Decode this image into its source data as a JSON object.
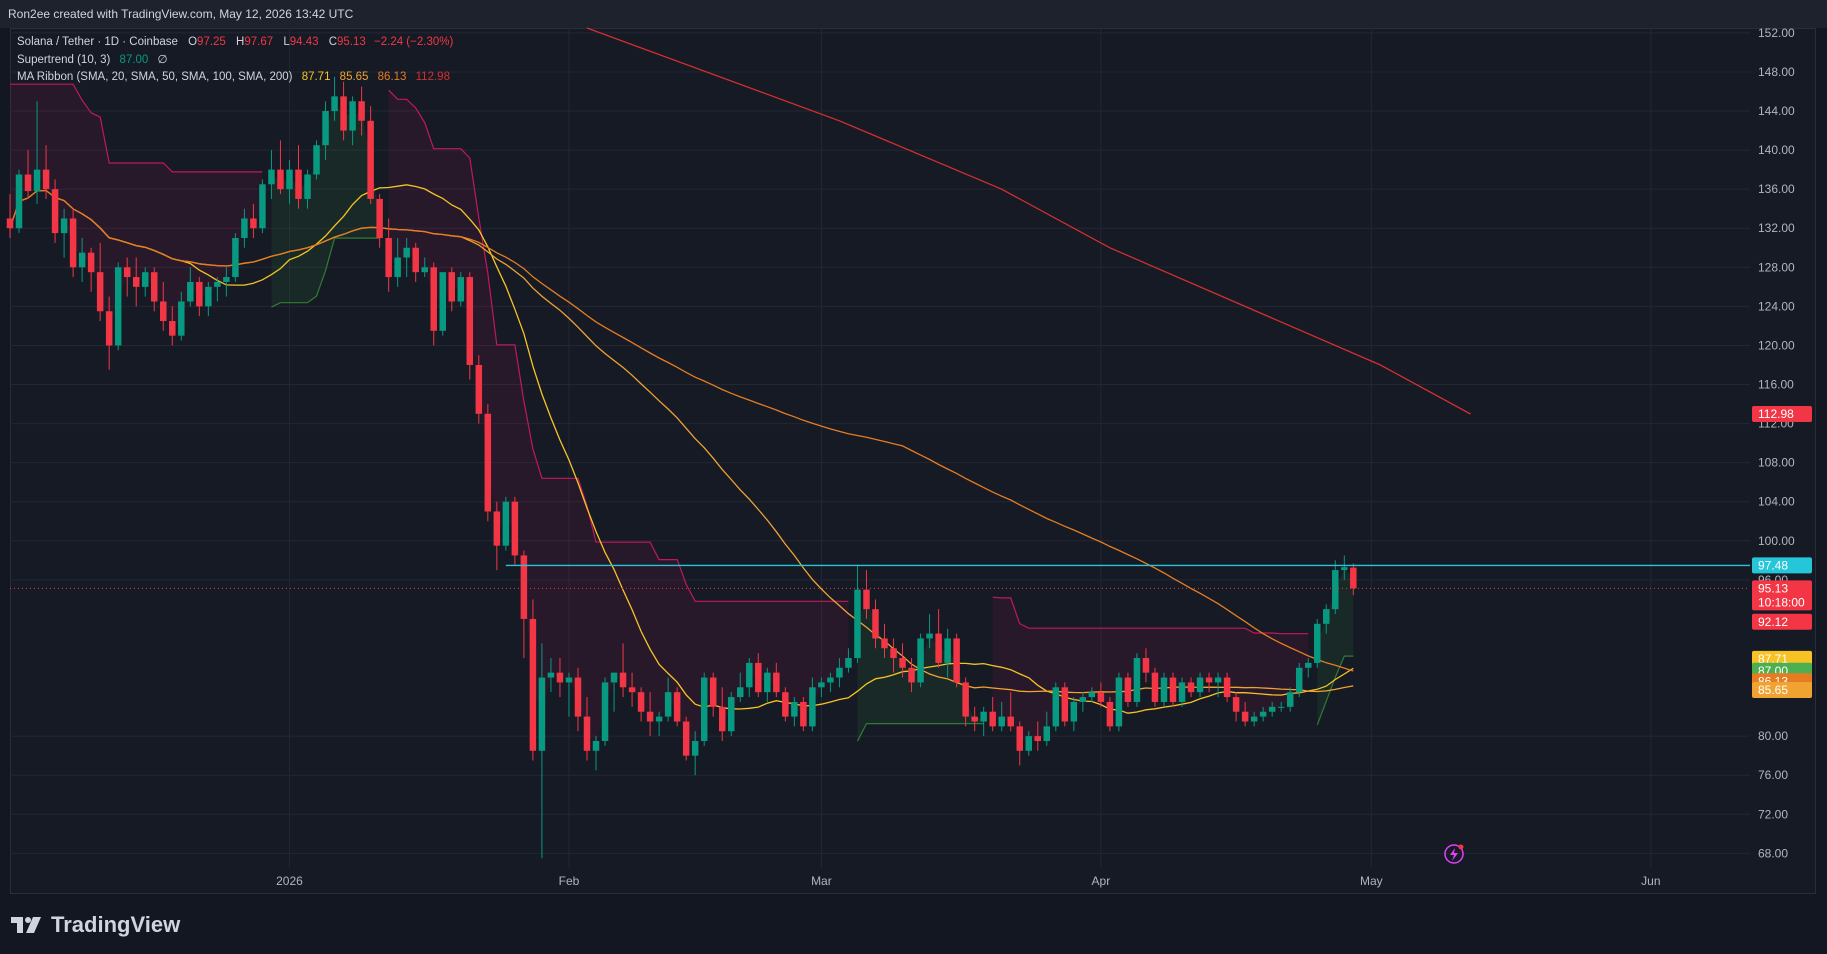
{
  "header": {
    "credit": "Ron2ee created with TradingView.com, May 12, 2026 13:42 UTC"
  },
  "legend": {
    "symbol": "Solana / Tether · 1D · Coinbase",
    "open_label": "O",
    "open": "97.25",
    "high_label": "H",
    "high": "97.67",
    "low_label": "L",
    "low": "94.43",
    "close_label": "C",
    "close": "95.13",
    "change": "−2.24 (−2.30%)",
    "supertrend_label": "Supertrend (10, 3)",
    "supertrend_value": "87.00",
    "supertrend_extra": "∅",
    "ma_label": "MA Ribbon (SMA, 20, SMA, 50, SMA, 100, SMA, 200)",
    "ma_values": [
      "87.71",
      "85.65",
      "86.13",
      "112.98"
    ]
  },
  "footer": {
    "brand": "TradingView"
  },
  "colors": {
    "background": "#131722",
    "up": "#089981",
    "down": "#f23645",
    "sma20": "#f7c324",
    "sma50": "#f0a330",
    "sma100": "#e57c22",
    "sma200": "#d32f2f",
    "supertrend_up": "#2e7d32",
    "supertrend_down": "#c2185b",
    "resistance": "#26c6da"
  },
  "chart_data": {
    "type": "candlestick",
    "title": "Solana / Tether · 1D · Coinbase",
    "y_axis": {
      "ticks": [
        "152.00",
        "148.00",
        "144.00",
        "140.00",
        "136.00",
        "132.00",
        "128.00",
        "124.00",
        "120.00",
        "116.00",
        "112.00",
        "108.00",
        "104.00",
        "100.00",
        "96.00",
        "80.00",
        "76.00",
        "72.00",
        "68.00"
      ],
      "range": [
        66.5,
        152.5
      ]
    },
    "x_axis": {
      "ticks": [
        {
          "label": "2026",
          "date": "2026-01-01"
        },
        {
          "label": "Feb",
          "date": "2026-02-01"
        },
        {
          "label": "Mar",
          "date": "2026-03-01"
        },
        {
          "label": "Apr",
          "date": "2026-04-01"
        },
        {
          "label": "May",
          "date": "2026-05-01"
        },
        {
          "label": "Jun",
          "date": "2026-06-01"
        }
      ],
      "range": [
        "2025-12-01",
        "2026-06-12"
      ]
    },
    "first_date": "2025-12-01",
    "last_date": "2026-05-12",
    "candles": [
      [
        133.0,
        135.5,
        131.0,
        132.0
      ],
      [
        132.0,
        138.0,
        131.5,
        137.5
      ],
      [
        137.5,
        140.0,
        135.0,
        135.8
      ],
      [
        135.8,
        145.0,
        134.5,
        138.0
      ],
      [
        138.0,
        140.5,
        135.0,
        136.0
      ],
      [
        136.0,
        137.0,
        130.5,
        131.5
      ],
      [
        131.5,
        134.0,
        129.0,
        133.0
      ],
      [
        133.0,
        134.0,
        127.0,
        128.0
      ],
      [
        128.0,
        131.0,
        126.5,
        129.5
      ],
      [
        129.5,
        130.0,
        125.5,
        127.5
      ],
      [
        127.5,
        130.5,
        122.5,
        123.5
      ],
      [
        123.5,
        125.0,
        117.5,
        120.0
      ],
      [
        120.0,
        128.5,
        119.5,
        128.0
      ],
      [
        128.0,
        129.0,
        125.0,
        127.0
      ],
      [
        127.0,
        129.0,
        124.0,
        126.0
      ],
      [
        126.0,
        128.0,
        125.0,
        127.5
      ],
      [
        127.5,
        128.0,
        123.5,
        124.5
      ],
      [
        124.5,
        126.5,
        121.5,
        122.5
      ],
      [
        122.5,
        124.0,
        120.0,
        121.0
      ],
      [
        121.0,
        125.5,
        120.5,
        124.5
      ],
      [
        124.5,
        128.0,
        124.0,
        126.5
      ],
      [
        126.5,
        127.0,
        123.0,
        124.0
      ],
      [
        124.0,
        126.5,
        123.0,
        126.0
      ],
      [
        126.0,
        127.0,
        124.5,
        126.5
      ],
      [
        126.5,
        128.0,
        125.0,
        127.0
      ],
      [
        127.0,
        131.5,
        126.5,
        131.0
      ],
      [
        131.0,
        134.0,
        130.0,
        133.0
      ],
      [
        133.0,
        134.5,
        131.0,
        132.0
      ],
      [
        132.0,
        137.0,
        131.5,
        136.5
      ],
      [
        136.5,
        140.0,
        135.0,
        138.0
      ],
      [
        138.0,
        141.0,
        135.5,
        136.0
      ],
      [
        136.0,
        139.0,
        134.5,
        138.0
      ],
      [
        138.0,
        140.5,
        134.0,
        135.0
      ],
      [
        135.0,
        138.0,
        134.0,
        137.5
      ],
      [
        137.5,
        141.0,
        137.0,
        140.5
      ],
      [
        140.5,
        145.0,
        139.0,
        144.0
      ],
      [
        144.0,
        147.5,
        143.0,
        145.5
      ],
      [
        145.5,
        147.0,
        141.0,
        142.0
      ],
      [
        142.0,
        145.5,
        140.5,
        145.0
      ],
      [
        145.0,
        146.5,
        141.5,
        143.0
      ],
      [
        143.0,
        144.5,
        134.5,
        135.0
      ],
      [
        135.0,
        135.5,
        130.0,
        131.0
      ],
      [
        131.0,
        133.0,
        125.5,
        127.0
      ],
      [
        127.0,
        131.0,
        126.0,
        129.0
      ],
      [
        129.0,
        131.0,
        127.0,
        130.0
      ],
      [
        130.0,
        130.5,
        126.5,
        127.5
      ],
      [
        127.5,
        129.0,
        127.0,
        128.0
      ],
      [
        128.0,
        128.5,
        120.0,
        121.5
      ],
      [
        121.5,
        127.5,
        121.0,
        127.5
      ],
      [
        127.5,
        128.0,
        123.5,
        124.5
      ],
      [
        124.5,
        127.5,
        124.0,
        127.0
      ],
      [
        127.0,
        127.5,
        116.5,
        118.0
      ],
      [
        118.0,
        119.0,
        112.0,
        113.0
      ],
      [
        113.0,
        114.0,
        102.0,
        103.0
      ],
      [
        103.0,
        104.0,
        97.0,
        99.5
      ],
      [
        99.5,
        104.5,
        99.0,
        104.0
      ],
      [
        104.0,
        104.5,
        97.5,
        98.5
      ],
      [
        98.5,
        99.0,
        88.0,
        92.0
      ],
      [
        92.0,
        94.0,
        77.5,
        78.5
      ],
      [
        78.5,
        89.5,
        67.5,
        86.0
      ],
      [
        86.0,
        88.0,
        84.5,
        86.5
      ],
      [
        86.5,
        88.0,
        84.0,
        85.5
      ],
      [
        85.5,
        86.5,
        82.0,
        86.0
      ],
      [
        86.0,
        87.0,
        80.5,
        82.0
      ],
      [
        82.0,
        84.0,
        77.5,
        78.5
      ],
      [
        78.5,
        80.0,
        76.5,
        79.5
      ],
      [
        79.5,
        86.0,
        79.0,
        85.5
      ],
      [
        85.5,
        86.5,
        82.5,
        86.5
      ],
      [
        86.5,
        89.5,
        84.0,
        85.0
      ],
      [
        85.0,
        86.5,
        83.0,
        84.5
      ],
      [
        84.5,
        85.0,
        81.5,
        82.5
      ],
      [
        82.5,
        84.5,
        80.0,
        81.5
      ],
      [
        81.5,
        82.5,
        80.0,
        82.0
      ],
      [
        82.0,
        86.0,
        81.5,
        84.5
      ],
      [
        84.5,
        85.0,
        81.0,
        81.5
      ],
      [
        81.5,
        82.0,
        77.5,
        78.0
      ],
      [
        78.0,
        80.5,
        76.0,
        79.5
      ],
      [
        79.5,
        86.5,
        79.0,
        86.0
      ],
      [
        86.0,
        86.5,
        82.0,
        83.0
      ],
      [
        83.0,
        85.0,
        79.5,
        80.5
      ],
      [
        80.5,
        84.5,
        80.0,
        84.0
      ],
      [
        84.0,
        86.5,
        83.5,
        85.0
      ],
      [
        85.0,
        88.0,
        84.0,
        87.5
      ],
      [
        87.5,
        88.5,
        84.0,
        84.5
      ],
      [
        84.5,
        87.0,
        83.5,
        86.5
      ],
      [
        86.5,
        87.5,
        84.0,
        84.5
      ],
      [
        84.5,
        85.0,
        81.5,
        82.0
      ],
      [
        82.0,
        84.0,
        81.0,
        83.5
      ],
      [
        83.5,
        84.0,
        80.5,
        81.0
      ],
      [
        81.0,
        86.0,
        80.5,
        85.0
      ],
      [
        85.0,
        86.0,
        84.0,
        85.5
      ],
      [
        85.5,
        86.5,
        84.5,
        86.0
      ],
      [
        86.0,
        88.0,
        85.0,
        87.0
      ],
      [
        87.0,
        89.0,
        86.5,
        88.0
      ],
      [
        88.0,
        97.5,
        87.5,
        95.0
      ],
      [
        95.0,
        97.0,
        92.0,
        93.0
      ],
      [
        93.0,
        94.0,
        89.0,
        90.0
      ],
      [
        90.0,
        91.5,
        88.0,
        89.0
      ],
      [
        89.0,
        90.0,
        86.5,
        88.0
      ],
      [
        88.0,
        89.5,
        86.0,
        87.0
      ],
      [
        87.0,
        88.0,
        84.5,
        85.5
      ],
      [
        85.5,
        90.5,
        85.0,
        90.0
      ],
      [
        90.0,
        92.5,
        89.0,
        90.5
      ],
      [
        90.5,
        93.0,
        87.0,
        87.5
      ],
      [
        87.5,
        91.0,
        86.0,
        90.0
      ],
      [
        90.0,
        90.5,
        85.0,
        85.5
      ],
      [
        85.5,
        86.0,
        81.0,
        82.0
      ],
      [
        82.0,
        83.0,
        80.5,
        81.5
      ],
      [
        81.5,
        83.0,
        80.0,
        82.5
      ],
      [
        82.5,
        84.0,
        80.5,
        81.0
      ],
      [
        81.0,
        83.5,
        80.5,
        82.0
      ],
      [
        82.0,
        84.5,
        80.5,
        81.0
      ],
      [
        81.0,
        81.5,
        77.0,
        78.5
      ],
      [
        78.5,
        80.5,
        78.0,
        80.0
      ],
      [
        80.0,
        81.5,
        78.5,
        79.5
      ],
      [
        79.5,
        82.5,
        79.0,
        81.0
      ],
      [
        81.0,
        85.5,
        80.5,
        85.0
      ],
      [
        85.0,
        85.5,
        81.0,
        81.5
      ],
      [
        81.5,
        84.0,
        80.5,
        83.5
      ],
      [
        83.5,
        84.5,
        82.5,
        84.0
      ],
      [
        84.0,
        85.0,
        83.5,
        84.5
      ],
      [
        84.5,
        85.5,
        83.0,
        83.5
      ],
      [
        83.5,
        84.0,
        80.5,
        81.0
      ],
      [
        81.0,
        86.5,
        80.5,
        86.0
      ],
      [
        86.0,
        86.5,
        83.0,
        83.5
      ],
      [
        83.5,
        88.5,
        83.0,
        88.0
      ],
      [
        88.0,
        89.0,
        85.5,
        86.5
      ],
      [
        86.5,
        87.0,
        83.0,
        83.5
      ],
      [
        83.5,
        86.5,
        83.0,
        86.0
      ],
      [
        86.0,
        86.5,
        83.0,
        83.5
      ],
      [
        83.5,
        86.0,
        83.0,
        85.5
      ],
      [
        85.5,
        86.0,
        84.0,
        84.5
      ],
      [
        84.5,
        86.5,
        84.0,
        86.0
      ],
      [
        86.0,
        86.5,
        84.5,
        85.5
      ],
      [
        85.5,
        86.5,
        84.0,
        86.0
      ],
      [
        86.0,
        86.5,
        83.5,
        84.0
      ],
      [
        84.0,
        84.5,
        81.5,
        82.5
      ],
      [
        82.5,
        83.5,
        81.0,
        81.5
      ],
      [
        81.5,
        82.5,
        81.0,
        82.0
      ],
      [
        82.0,
        83.0,
        81.5,
        82.5
      ],
      [
        82.5,
        83.5,
        82.0,
        83.0
      ],
      [
        83.0,
        83.5,
        82.5,
        83.0
      ],
      [
        83.0,
        85.0,
        82.5,
        84.5
      ],
      [
        84.5,
        87.5,
        84.0,
        87.0
      ],
      [
        87.0,
        88.0,
        86.0,
        87.5
      ],
      [
        87.5,
        92.0,
        87.0,
        91.5
      ],
      [
        91.5,
        93.5,
        90.5,
        93.0
      ],
      [
        93.0,
        98.0,
        92.5,
        97.0
      ],
      [
        97.0,
        98.5,
        96.0,
        97.3
      ],
      [
        97.25,
        97.67,
        94.43,
        95.13
      ]
    ],
    "series": [
      {
        "name": "SMA 20",
        "last": 87.71
      },
      {
        "name": "SMA 50",
        "last": 85.65
      },
      {
        "name": "SMA 100",
        "last": 86.13
      },
      {
        "name": "SMA 200",
        "last": 112.98
      },
      {
        "name": "Supertrend",
        "last": 87.0
      }
    ],
    "sma200_points": [
      [
        64,
        152.5
      ],
      [
        92,
        143
      ],
      [
        110,
        136
      ],
      [
        122,
        130
      ],
      [
        137,
        124
      ],
      [
        152,
        118
      ],
      [
        162,
        112.98
      ]
    ],
    "resistance": 97.48,
    "price_tags": [
      {
        "value": 112.98,
        "label": "112.98",
        "color": "#f23645"
      },
      {
        "value": 97.48,
        "label": "97.48",
        "color": "#26c6da"
      },
      {
        "value": 95.13,
        "label": "95.13",
        "sub": "10:18:00",
        "color": "#f23645"
      },
      {
        "value": 92.12,
        "label": "92.12",
        "color": "#f23645"
      },
      {
        "value": 87.71,
        "label": "87.71",
        "color": "#f7c324"
      },
      {
        "value": 87.0,
        "label": "87.00",
        "color": "#4caf50"
      },
      {
        "value": 86.13,
        "label": "86.13",
        "color": "#e57c22"
      },
      {
        "value": 85.65,
        "label": "85.65",
        "color": "#f0a330"
      }
    ]
  }
}
